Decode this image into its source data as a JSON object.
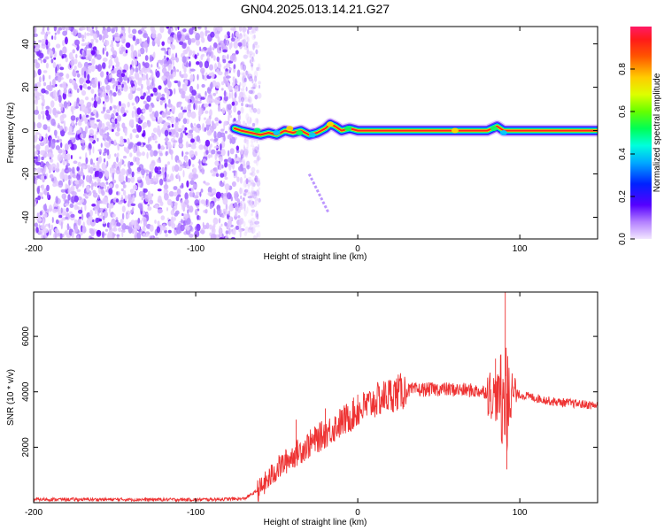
{
  "title": "GN04.2025.013.14.21.G27",
  "chart_data": [
    {
      "type": "heatmap",
      "xlabel": "Height of straight line (km)",
      "ylabel": "Frequency (Hz)",
      "xlim": [
        -200,
        148
      ],
      "ylim": [
        -50,
        48
      ],
      "xticks": [
        -200,
        -100,
        0,
        100
      ],
      "yticks": [
        -40,
        -20,
        0,
        20,
        40
      ],
      "tone_track": [
        [
          -76,
          1
        ],
        [
          -72,
          0
        ],
        [
          -66,
          -1
        ],
        [
          -60,
          -2
        ],
        [
          -55,
          -1
        ],
        [
          -50,
          -2
        ],
        [
          -45,
          0
        ],
        [
          -40,
          -1
        ],
        [
          -35,
          0
        ],
        [
          -30,
          -2
        ],
        [
          -25,
          -1
        ],
        [
          -20,
          1
        ],
        [
          -17,
          3
        ],
        [
          -14,
          2
        ],
        [
          -10,
          0
        ],
        [
          -5,
          1
        ],
        [
          0,
          0
        ],
        [
          40,
          0
        ],
        [
          80,
          0
        ],
        [
          86,
          2
        ],
        [
          90,
          0
        ],
        [
          100,
          0
        ],
        [
          148,
          0
        ]
      ],
      "faint_track": [
        [
          -30,
          -20
        ],
        [
          -18,
          -38
        ]
      ],
      "noise_region_xmax": -66,
      "colorbar": {
        "label": "Normalized spectral amplitude",
        "range": [
          0,
          1
        ],
        "ticks": [
          0.0,
          0.2,
          0.4,
          0.6,
          0.8
        ]
      }
    },
    {
      "type": "line",
      "xlabel": "Height of straight line (km)",
      "ylabel": "SNR (10 * v/v)",
      "xlim": [
        -200,
        148
      ],
      "ylim": [
        0,
        7600
      ],
      "xticks": [
        -200,
        -100,
        0,
        100
      ],
      "yticks": [
        2000,
        4000,
        6000
      ],
      "color": "#ee3333",
      "envelope": [
        [
          -200,
          120
        ],
        [
          -100,
          110
        ],
        [
          -70,
          140
        ],
        [
          -60,
          500
        ],
        [
          -50,
          1200
        ],
        [
          -40,
          1700
        ],
        [
          -30,
          2100
        ],
        [
          -20,
          2500
        ],
        [
          -10,
          2900
        ],
        [
          0,
          3300
        ],
        [
          10,
          3650
        ],
        [
          20,
          3900
        ],
        [
          30,
          4050
        ],
        [
          50,
          4100
        ],
        [
          70,
          4050
        ],
        [
          80,
          4000
        ],
        [
          85,
          3800
        ],
        [
          90,
          3950
        ],
        [
          100,
          3900
        ],
        [
          120,
          3650
        ],
        [
          148,
          3500
        ]
      ],
      "spikes": [
        [
          -38,
          3000
        ],
        [
          -20,
          3400
        ],
        [
          0,
          3900
        ],
        [
          85,
          5200
        ],
        [
          91,
          7600
        ],
        [
          92,
          1200
        ],
        [
          88,
          4700
        ]
      ]
    }
  ]
}
